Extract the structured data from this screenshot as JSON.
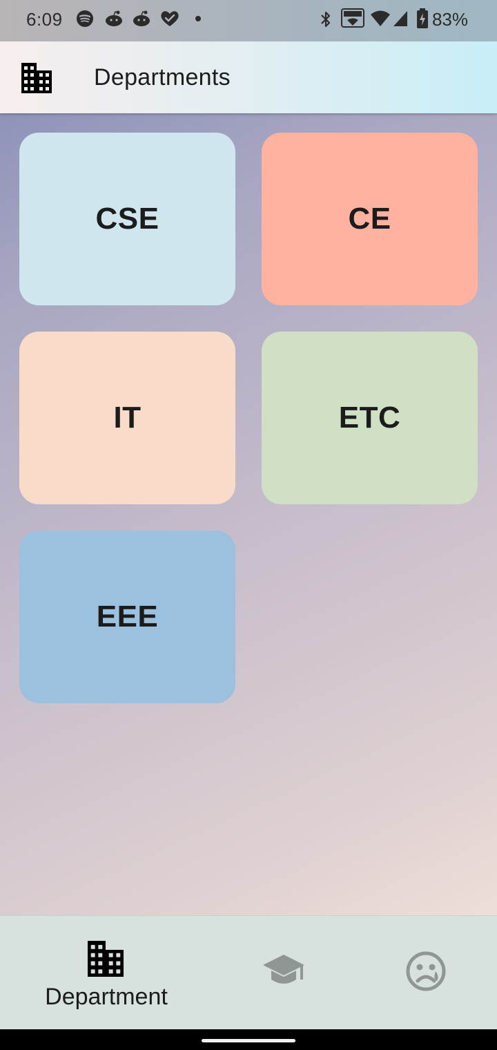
{
  "status_bar": {
    "time": "6:09",
    "battery": "83%",
    "icons": [
      "spotify-icon",
      "reddit-icon",
      "reddit-icon",
      "heart-check-icon",
      "dot-icon",
      "bluetooth-icon",
      "vowifi-icon",
      "wifi-icon",
      "signal-icon",
      "battery-charging-icon"
    ]
  },
  "app_bar": {
    "icon": "building-icon",
    "title": "Departments"
  },
  "departments": [
    {
      "label": "CSE",
      "color": "#cfe6ef"
    },
    {
      "label": "CE",
      "color": "#ffb29f"
    },
    {
      "label": "IT",
      "color": "#f8dbc8"
    },
    {
      "label": "ETC",
      "color": "#d0e0c5"
    },
    {
      "label": "EEE",
      "color": "#9bc1df"
    }
  ],
  "bottom_nav": {
    "items": [
      {
        "label": "Department",
        "icon": "building-icon",
        "selected": true
      },
      {
        "label": "",
        "icon": "graduation-cap-icon",
        "selected": false
      },
      {
        "label": "",
        "icon": "sad-face-icon",
        "selected": false
      }
    ],
    "active_color": "#000000",
    "inactive_color": "#8f9694"
  }
}
